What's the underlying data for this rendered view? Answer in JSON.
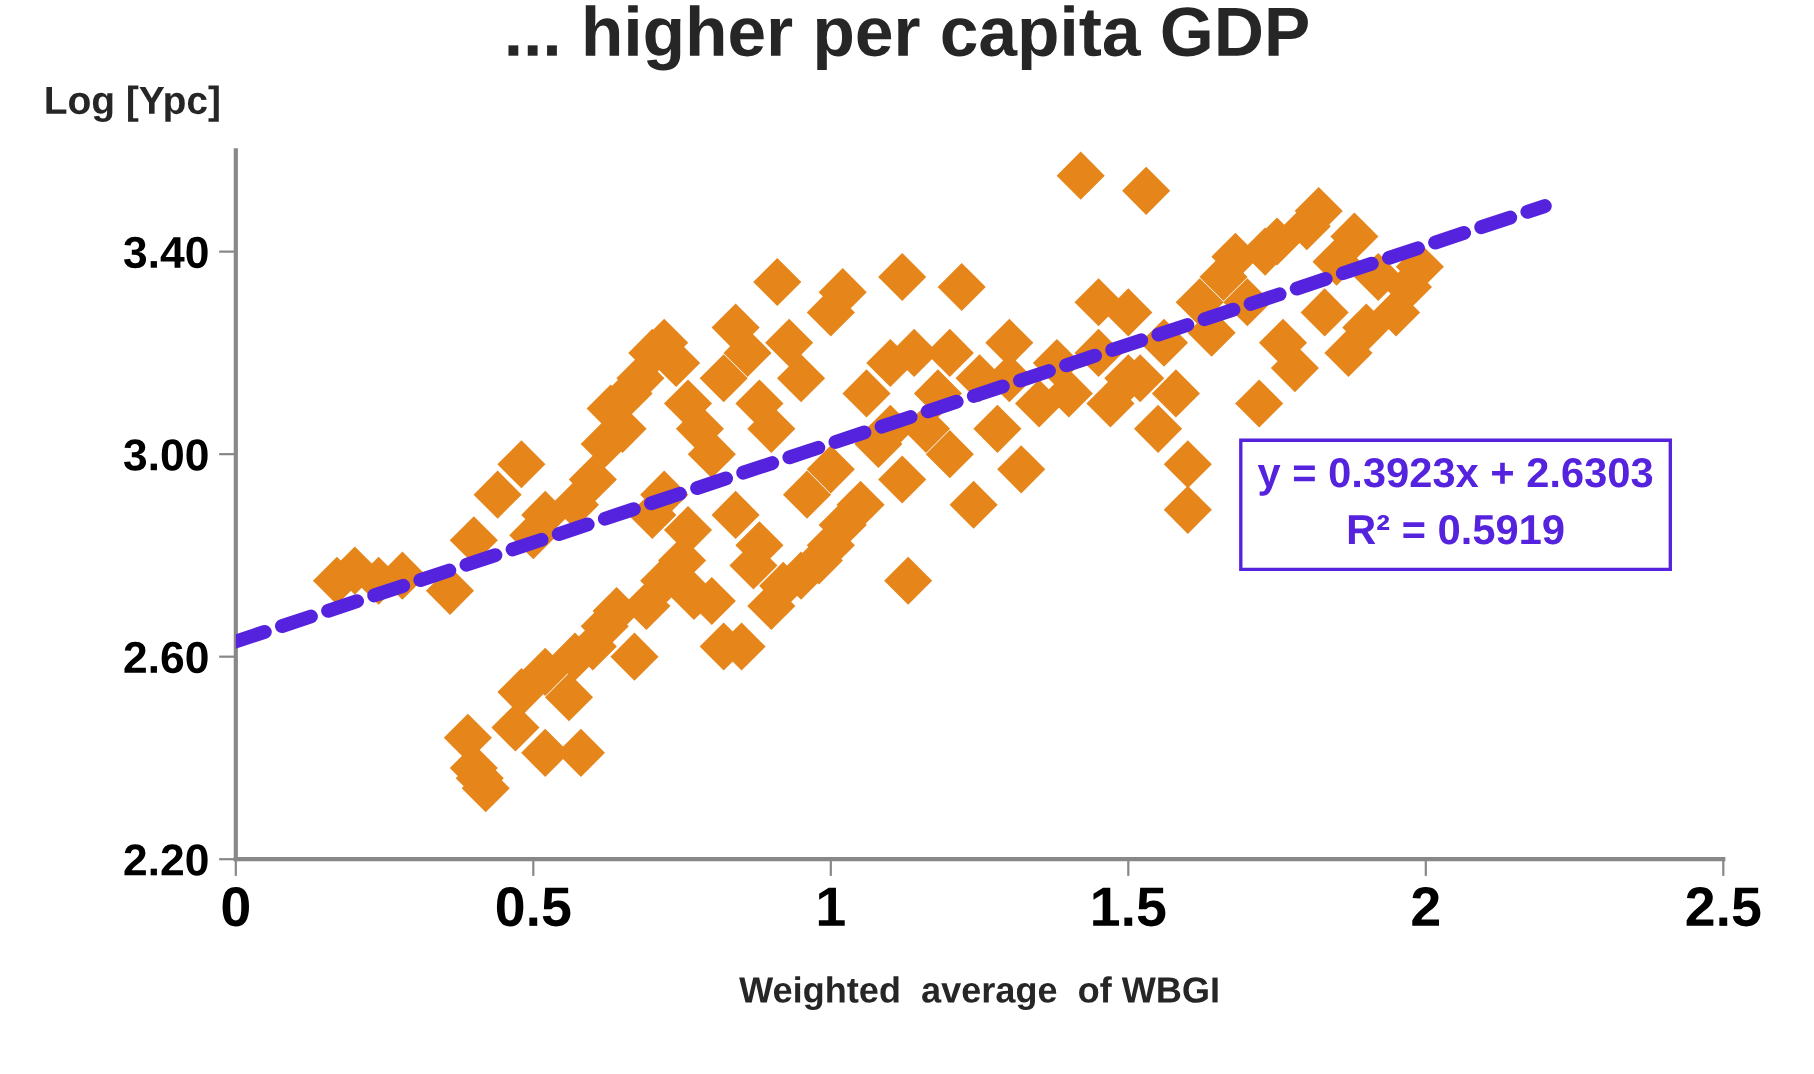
{
  "chart_data": {
    "type": "scatter",
    "title": "... higher per capita GDP",
    "xlabel": "Weighted  average  of WBGI",
    "ylabel": "Log [Ypc]",
    "xlim": [
      0,
      2.5
    ],
    "xticks": [
      0,
      0.5,
      1,
      1.5,
      2,
      2.5
    ],
    "ylim": [
      2.2,
      3.6
    ],
    "yticks": [
      {
        "value": 2.2,
        "label": "2.20"
      },
      {
        "value": 2.6,
        "label": "2.60"
      },
      {
        "value": 3.0,
        "label": "3.00"
      },
      {
        "value": 3.4,
        "label": "3.40"
      }
    ],
    "grid": false,
    "legend": false,
    "marker": "diamond",
    "annotations": [
      "y = 0.3923x + 2.6303",
      "R² = 0.5919"
    ],
    "series": [
      {
        "color": "#e6861a",
        "x": [
          0.17,
          0.2,
          0.24,
          0.28,
          0.36,
          0.4,
          0.44,
          0.48,
          0.5,
          0.52,
          0.57,
          0.6,
          0.62,
          0.63,
          0.65,
          0.66,
          0.68,
          0.7,
          0.72,
          0.74,
          0.76,
          0.78,
          0.8,
          0.82,
          0.84,
          0.86,
          0.88,
          0.9,
          0.91,
          0.93,
          0.95,
          0.39,
          0.4,
          0.41,
          0.42,
          0.47,
          0.48,
          0.52,
          0.52,
          0.56,
          0.58,
          0.57,
          0.6,
          0.62,
          0.64,
          0.67,
          0.69,
          0.72,
          0.75,
          0.77,
          0.8,
          0.82,
          0.85,
          0.87,
          0.9,
          0.92,
          0.95,
          0.98,
          1.0,
          1.02,
          1.05,
          0.7,
          0.72,
          0.76,
          0.84,
          0.88,
          0.96,
          1.0,
          1.0,
          1.02,
          1.06,
          1.08,
          1.1,
          1.12,
          1.14,
          1.13,
          1.12,
          1.16,
          1.18,
          1.2,
          1.22,
          1.24,
          1.25,
          1.28,
          1.3,
          1.32,
          1.35,
          1.38,
          1.4,
          1.42,
          1.45,
          1.47,
          1.5,
          1.52,
          1.53,
          1.55,
          1.56,
          1.58,
          1.6,
          1.6,
          1.62,
          1.64,
          1.66,
          1.68,
          1.7,
          1.72,
          1.73,
          1.75,
          1.76,
          1.78,
          1.8,
          1.82,
          1.83,
          1.85,
          1.87,
          1.88,
          1.9,
          1.92,
          1.95,
          1.97,
          1.99,
          1.5,
          1.45,
          1.3,
          1.1,
          1.2
        ],
        "values": [
          2.75,
          2.77,
          2.75,
          2.76,
          2.73,
          2.83,
          2.92,
          2.98,
          2.84,
          2.88,
          2.9,
          2.95,
          3.02,
          3.09,
          3.05,
          3.12,
          3.15,
          3.2,
          3.22,
          3.18,
          3.1,
          3.05,
          3.0,
          3.15,
          3.25,
          3.2,
          3.1,
          3.05,
          3.34,
          3.22,
          3.15,
          2.44,
          2.38,
          2.36,
          2.34,
          2.46,
          2.53,
          2.57,
          2.41,
          2.52,
          2.41,
          2.6,
          2.62,
          2.66,
          2.69,
          2.6,
          2.7,
          2.75,
          2.79,
          2.72,
          2.71,
          2.62,
          2.62,
          2.78,
          2.7,
          2.74,
          2.76,
          2.79,
          2.82,
          2.86,
          2.9,
          2.88,
          2.92,
          2.85,
          2.88,
          2.82,
          2.92,
          2.97,
          3.28,
          3.32,
          3.12,
          3.02,
          3.18,
          3.35,
          3.2,
          2.75,
          2.95,
          3.05,
          3.12,
          3.0,
          3.33,
          2.9,
          3.15,
          3.05,
          3.22,
          2.97,
          3.1,
          3.18,
          3.12,
          3.55,
          3.2,
          3.1,
          3.28,
          3.15,
          3.52,
          3.05,
          3.22,
          3.12,
          2.89,
          2.98,
          3.3,
          3.24,
          3.35,
          3.39,
          3.3,
          3.1,
          3.4,
          3.42,
          3.22,
          3.17,
          3.45,
          3.48,
          3.28,
          3.38,
          3.2,
          3.43,
          3.25,
          3.35,
          3.28,
          3.33,
          3.37,
          3.15,
          3.3,
          3.15,
          3.05,
          3.2
        ]
      },
      {
        "type": "line",
        "color": "#5522dd",
        "line_style": "dashed",
        "marker": "none",
        "x": [
          0,
          2.2
        ],
        "values": [
          2.63,
          3.49
        ]
      }
    ]
  }
}
